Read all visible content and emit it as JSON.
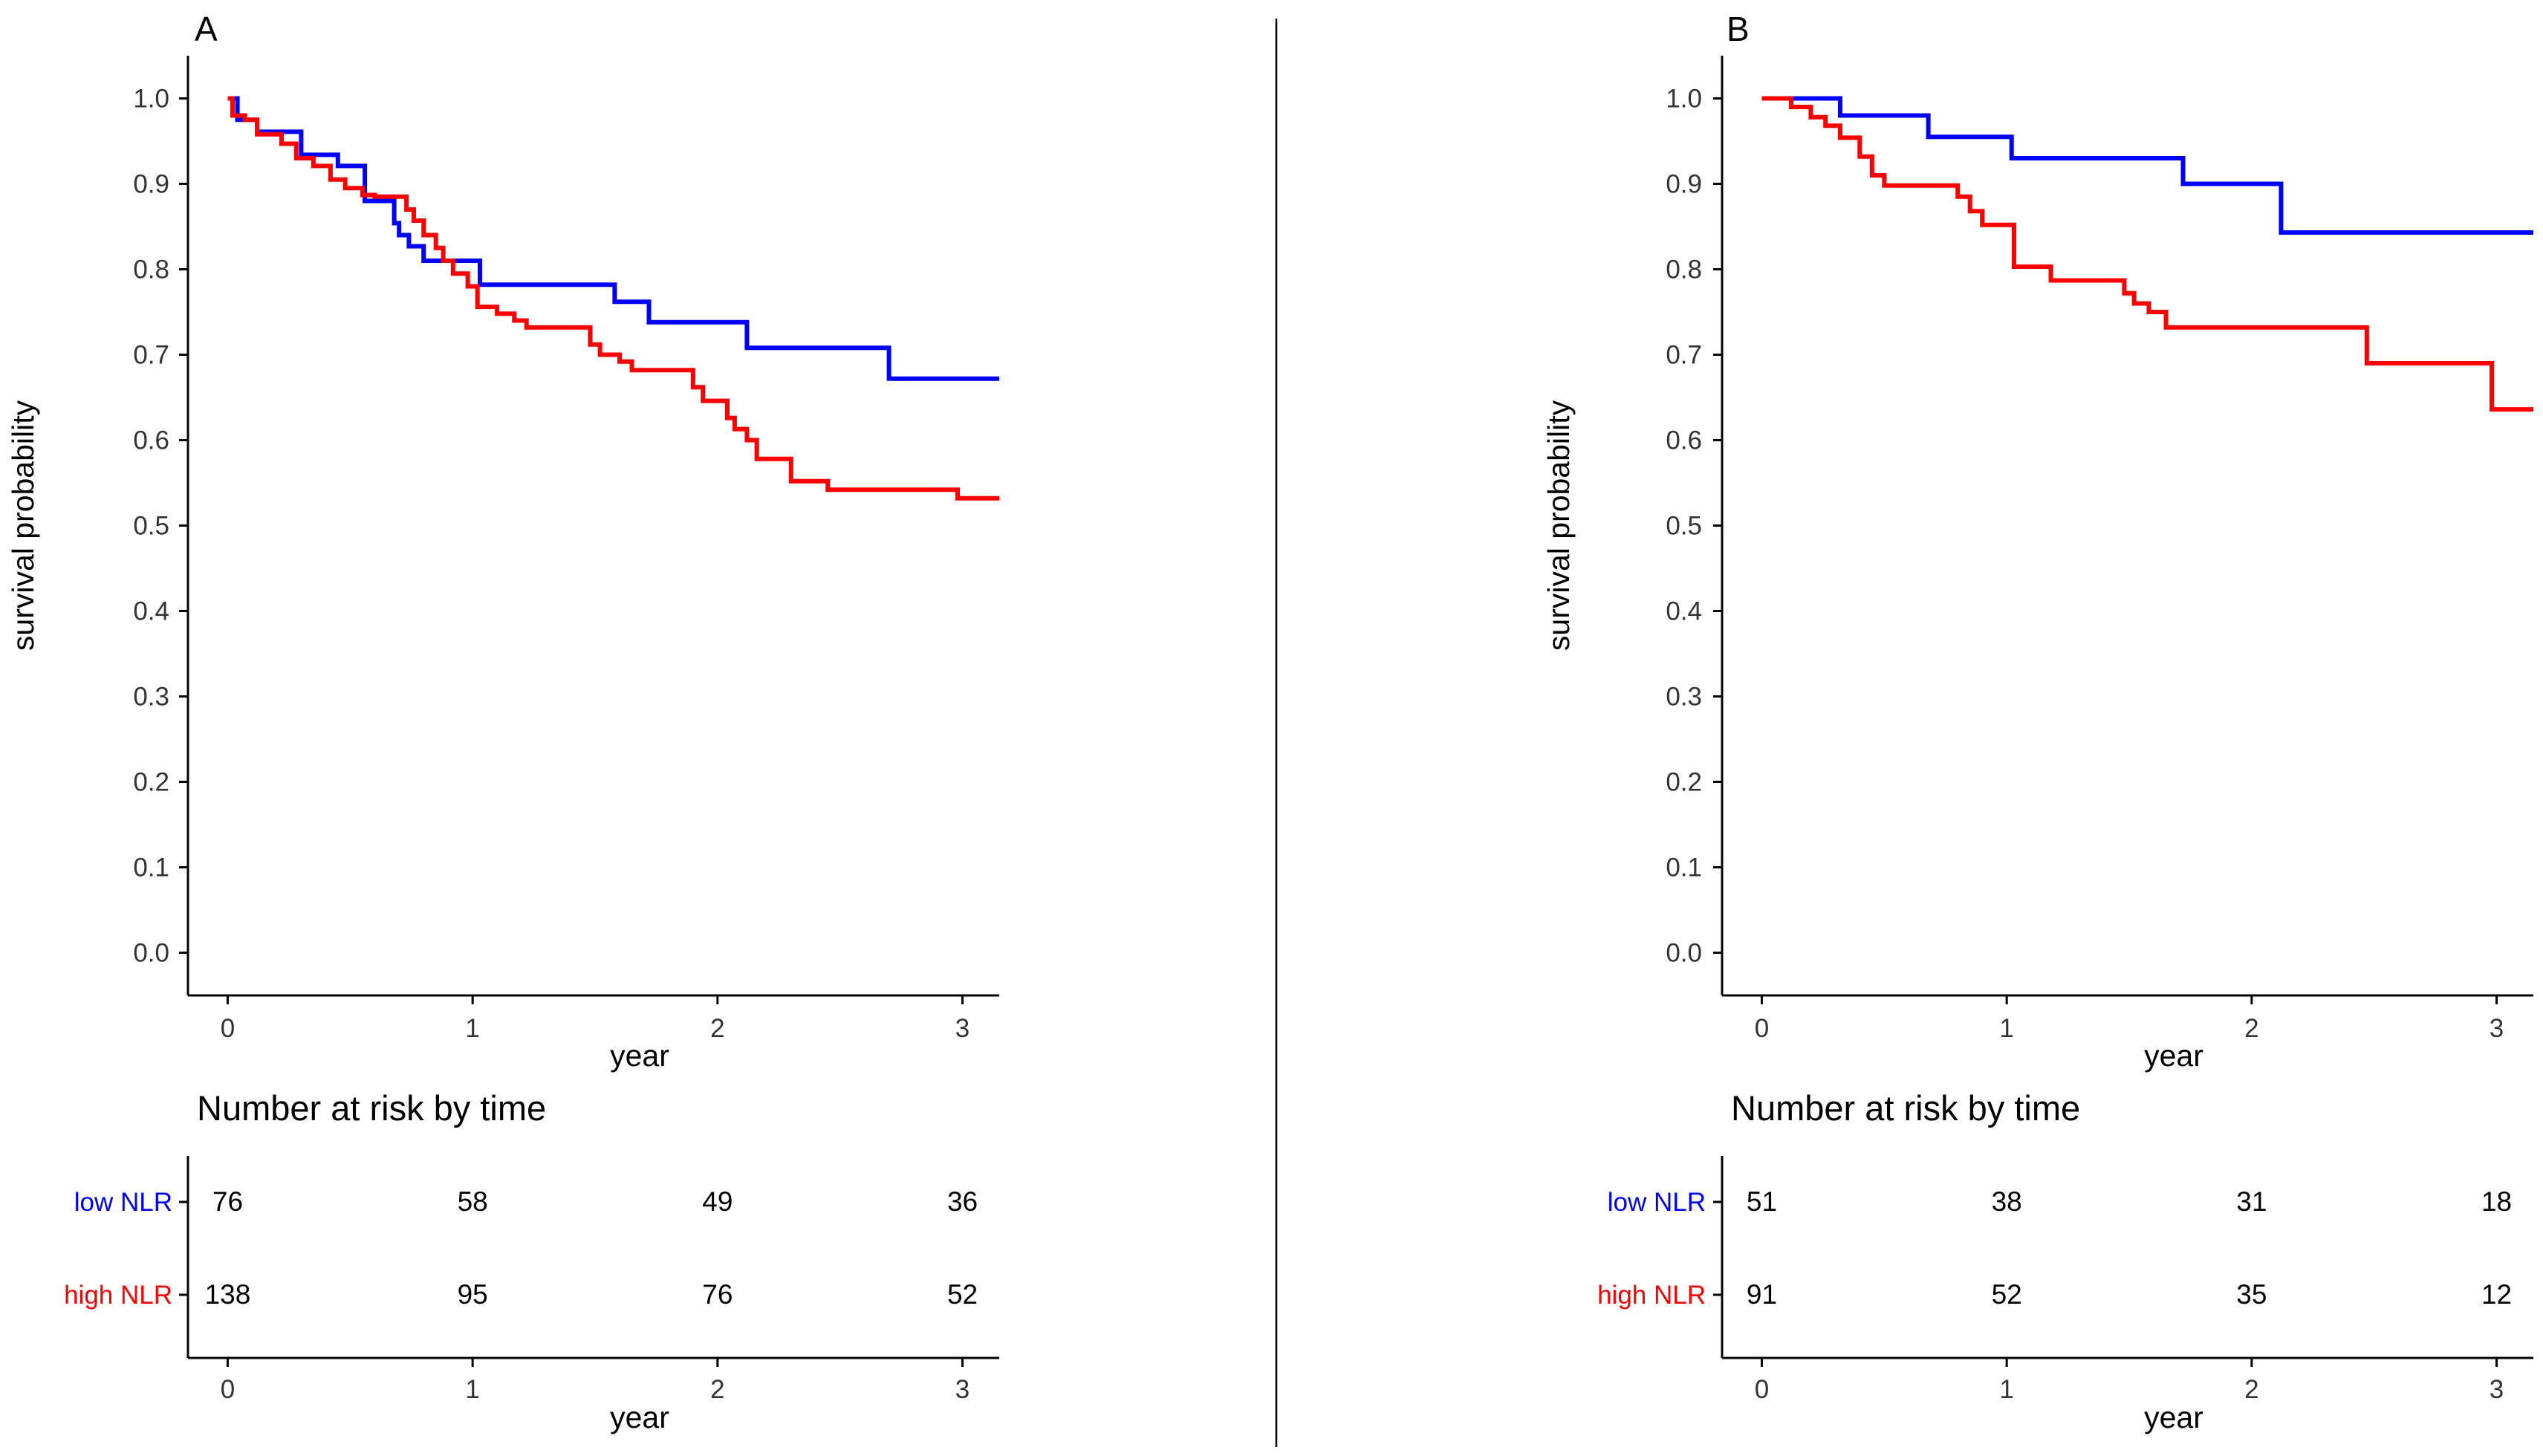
{
  "colors": {
    "low": "#0000ff",
    "high": "#ff0000",
    "axis": "#000000"
  },
  "chart_data": [
    {
      "type": "line",
      "panel_label": "A",
      "xlabel": "year",
      "ylabel": "survival probability",
      "xlim": [
        -0.15,
        3.15
      ],
      "ylim": [
        -0.05,
        1.05
      ],
      "xticks": [
        "0",
        "1",
        "2",
        "3"
      ],
      "yticks": [
        "0.0",
        "0.1",
        "0.2",
        "0.3",
        "0.4",
        "0.5",
        "0.6",
        "0.7",
        "0.8",
        "0.9",
        "1.0"
      ],
      "series": [
        {
          "name": "low NLR",
          "color": "#0000ff",
          "points": [
            [
              0,
              1.0
            ],
            [
              0.04,
              0.975
            ],
            [
              0.12,
              0.961
            ],
            [
              0.3,
              0.934
            ],
            [
              0.45,
              0.921
            ],
            [
              0.56,
              0.88
            ],
            [
              0.68,
              0.854
            ],
            [
              0.7,
              0.84
            ],
            [
              0.74,
              0.827
            ],
            [
              0.8,
              0.81
            ],
            [
              0.95,
              0.81
            ],
            [
              1.03,
              0.782
            ],
            [
              1.55,
              0.782
            ],
            [
              1.58,
              0.762
            ],
            [
              1.72,
              0.738
            ],
            [
              2.12,
              0.708
            ],
            [
              2.7,
              0.672
            ],
            [
              3.15,
              0.672
            ]
          ]
        },
        {
          "name": "high NLR",
          "color": "#ff0000",
          "points": [
            [
              0,
              1.0
            ],
            [
              0.02,
              0.98
            ],
            [
              0.07,
              0.975
            ],
            [
              0.12,
              0.958
            ],
            [
              0.22,
              0.947
            ],
            [
              0.28,
              0.93
            ],
            [
              0.35,
              0.921
            ],
            [
              0.42,
              0.905
            ],
            [
              0.48,
              0.895
            ],
            [
              0.55,
              0.887
            ],
            [
              0.6,
              0.885
            ],
            [
              0.73,
              0.87
            ],
            [
              0.76,
              0.857
            ],
            [
              0.8,
              0.84
            ],
            [
              0.85,
              0.825
            ],
            [
              0.88,
              0.81
            ],
            [
              0.92,
              0.795
            ],
            [
              0.98,
              0.78
            ],
            [
              1.02,
              0.756
            ],
            [
              1.1,
              0.748
            ],
            [
              1.17,
              0.74
            ],
            [
              1.22,
              0.732
            ],
            [
              1.48,
              0.712
            ],
            [
              1.52,
              0.7
            ],
            [
              1.6,
              0.692
            ],
            [
              1.65,
              0.682
            ],
            [
              1.9,
              0.662
            ],
            [
              1.94,
              0.646
            ],
            [
              2.04,
              0.626
            ],
            [
              2.07,
              0.613
            ],
            [
              2.12,
              0.6
            ],
            [
              2.16,
              0.578
            ],
            [
              2.3,
              0.552
            ],
            [
              2.45,
              0.542
            ],
            [
              2.98,
              0.532
            ],
            [
              3.15,
              0.532
            ]
          ]
        }
      ],
      "risk_table": {
        "title": "Number at risk by time",
        "xlabel": "year",
        "xticks": [
          "0",
          "1",
          "2",
          "3"
        ],
        "rows": [
          {
            "label": "low NLR",
            "color": "#0000ff",
            "values": [
              "76",
              "58",
              "49",
              "36"
            ]
          },
          {
            "label": "high NLR",
            "color": "#ff0000",
            "values": [
              "138",
              "95",
              "76",
              "52"
            ]
          }
        ]
      }
    },
    {
      "type": "line",
      "panel_label": "B",
      "xlabel": "year",
      "ylabel": "survival probability",
      "xlim": [
        -0.15,
        3.15
      ],
      "ylim": [
        -0.05,
        1.05
      ],
      "xticks": [
        "0",
        "1",
        "2",
        "3"
      ],
      "yticks": [
        "0.0",
        "0.1",
        "0.2",
        "0.3",
        "0.4",
        "0.5",
        "0.6",
        "0.7",
        "0.8",
        "0.9",
        "1.0"
      ],
      "series": [
        {
          "name": "low NLR",
          "color": "#0000ff",
          "points": [
            [
              0,
              1.0
            ],
            [
              0.32,
              0.98
            ],
            [
              0.68,
              0.955
            ],
            [
              1.02,
              0.93
            ],
            [
              1.72,
              0.9
            ],
            [
              2.12,
              0.843
            ],
            [
              3.15,
              0.843
            ]
          ]
        },
        {
          "name": "high NLR",
          "color": "#ff0000",
          "points": [
            [
              0,
              1.0
            ],
            [
              0.12,
              0.99
            ],
            [
              0.2,
              0.978
            ],
            [
              0.26,
              0.968
            ],
            [
              0.32,
              0.954
            ],
            [
              0.4,
              0.932
            ],
            [
              0.45,
              0.91
            ],
            [
              0.5,
              0.898
            ],
            [
              0.8,
              0.885
            ],
            [
              0.85,
              0.868
            ],
            [
              0.9,
              0.852
            ],
            [
              1.03,
              0.803
            ],
            [
              1.18,
              0.787
            ],
            [
              1.48,
              0.772
            ],
            [
              1.52,
              0.76
            ],
            [
              1.58,
              0.75
            ],
            [
              1.65,
              0.732
            ],
            [
              2.47,
              0.69
            ],
            [
              2.98,
              0.636
            ],
            [
              3.15,
              0.636
            ]
          ]
        }
      ],
      "risk_table": {
        "title": "Number at risk by time",
        "xlabel": "year",
        "xticks": [
          "0",
          "1",
          "2",
          "3"
        ],
        "rows": [
          {
            "label": "low NLR",
            "color": "#0000ff",
            "values": [
              "51",
              "38",
              "31",
              "18"
            ]
          },
          {
            "label": "high NLR",
            "color": "#ff0000",
            "values": [
              "91",
              "52",
              "35",
              "12"
            ]
          }
        ]
      }
    }
  ]
}
